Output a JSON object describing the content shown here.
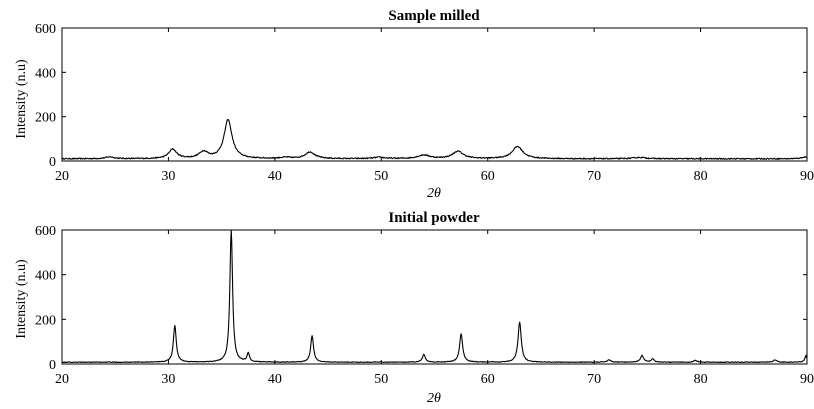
{
  "chart_data": [
    {
      "type": "line",
      "title": "Sample milled",
      "xlabel": "2θ",
      "ylabel": "Intensity (n.u)",
      "xlim": [
        20,
        90
      ],
      "ylim": [
        0,
        600
      ],
      "xticks": [
        "20",
        "30",
        "40",
        "50",
        "60",
        "70",
        "80",
        "90"
      ],
      "yticks": [
        "0",
        "200",
        "400",
        "600"
      ],
      "grid": false,
      "series": [
        {
          "baseline": 10,
          "peaks": [
            {
              "x": 24.5,
              "height": 8,
              "width": 0.5
            },
            {
              "x": 30.4,
              "height": 42,
              "width": 0.45
            },
            {
              "x": 33.3,
              "height": 30,
              "width": 0.5
            },
            {
              "x": 35.6,
              "height": 175,
              "width": 0.45
            },
            {
              "x": 41.0,
              "height": 5,
              "width": 0.6
            },
            {
              "x": 43.3,
              "height": 30,
              "width": 0.55
            },
            {
              "x": 49.8,
              "height": 6,
              "width": 0.6
            },
            {
              "x": 54.0,
              "height": 16,
              "width": 0.7
            },
            {
              "x": 57.2,
              "height": 33,
              "width": 0.6
            },
            {
              "x": 62.8,
              "height": 55,
              "width": 0.6
            },
            {
              "x": 74.3,
              "height": 6,
              "width": 0.7
            },
            {
              "x": 89.8,
              "height": 8,
              "width": 0.4
            }
          ]
        }
      ]
    },
    {
      "type": "line",
      "title": "Initial powder",
      "xlabel": "2θ",
      "ylabel": "Intensity (n.u)",
      "xlim": [
        20,
        90
      ],
      "ylim": [
        0,
        600
      ],
      "xticks": [
        "20",
        "30",
        "40",
        "50",
        "60",
        "70",
        "80",
        "90"
      ],
      "yticks": [
        "0",
        "200",
        "400",
        "600"
      ],
      "grid": false,
      "series": [
        {
          "baseline": 8,
          "peaks": [
            {
              "x": 30.6,
              "height": 165,
              "width": 0.16
            },
            {
              "x": 35.9,
              "height": 595,
              "width": 0.15
            },
            {
              "x": 37.5,
              "height": 38,
              "width": 0.14
            },
            {
              "x": 43.5,
              "height": 118,
              "width": 0.16
            },
            {
              "x": 54.0,
              "height": 35,
              "width": 0.16
            },
            {
              "x": 57.5,
              "height": 128,
              "width": 0.17
            },
            {
              "x": 63.0,
              "height": 180,
              "width": 0.18
            },
            {
              "x": 71.4,
              "height": 10,
              "width": 0.2
            },
            {
              "x": 74.5,
              "height": 30,
              "width": 0.18
            },
            {
              "x": 75.5,
              "height": 14,
              "width": 0.18
            },
            {
              "x": 79.5,
              "height": 8,
              "width": 0.2
            },
            {
              "x": 87.0,
              "height": 10,
              "width": 0.2
            },
            {
              "x": 89.9,
              "height": 30,
              "width": 0.12
            }
          ]
        }
      ]
    }
  ]
}
